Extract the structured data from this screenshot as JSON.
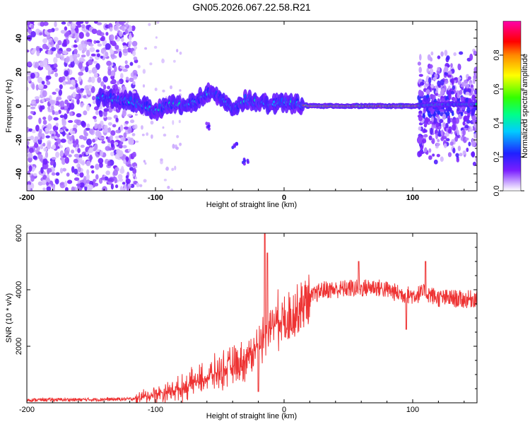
{
  "title": "GN05.2026.067.22.58.R21",
  "chart_data": [
    {
      "type": "heatmap",
      "xlabel": "Height of straight line (km)",
      "ylabel": "Frequency (Hz)",
      "xlim": [
        -200,
        150
      ],
      "ylim": [
        -50,
        50
      ],
      "x_ticks": [
        -200,
        -100,
        0,
        100
      ],
      "y_ticks": [
        -40,
        -20,
        0,
        20,
        40
      ],
      "colorbar": {
        "label": "Normalized spectral amplitude",
        "range": [
          0,
          1
        ],
        "ticks": [
          "0.0",
          "0.2",
          "0.4",
          "0.6",
          "0.8"
        ],
        "colormap": "rainbow (white/lilac to purple, blue, cyan, green, yellow, orange, red, magenta)"
      },
      "features": {
        "noise_regions_km": [
          [
            -200,
            -115
          ],
          [
            105,
            150
          ]
        ],
        "carrier_ridge": [
          {
            "x": -140,
            "y": 5
          },
          {
            "x": -120,
            "y": 3
          },
          {
            "x": -110,
            "y": 1
          },
          {
            "x": -100,
            "y": -3
          },
          {
            "x": -90,
            "y": 1
          },
          {
            "x": -80,
            "y": 0
          },
          {
            "x": -70,
            "y": 2
          },
          {
            "x": -60,
            "y": 8
          },
          {
            "x": -50,
            "y": 6
          },
          {
            "x": -40,
            "y": -2
          },
          {
            "x": -30,
            "y": 4
          },
          {
            "x": -20,
            "y": 2
          },
          {
            "x": -10,
            "y": 1
          },
          {
            "x": 0,
            "y": 2
          },
          {
            "x": 20,
            "y": 0
          },
          {
            "x": 60,
            "y": 0
          },
          {
            "x": 100,
            "y": 0
          },
          {
            "x": 120,
            "y": 1
          },
          {
            "x": 150,
            "y": 1
          }
        ],
        "scattered_branch": [
          {
            "x": -60,
            "y": -12
          },
          {
            "x": -38,
            "y": -24
          },
          {
            "x": -30,
            "y": -33
          }
        ]
      }
    },
    {
      "type": "line",
      "xlabel": "Height of straight line (km)",
      "ylabel": "SNR (10 * v/v)",
      "xlim": [
        -200,
        150
      ],
      "ylim": [
        0,
        6000
      ],
      "x_ticks": [
        -200,
        -100,
        0,
        100
      ],
      "y_ticks": [
        2000,
        4000,
        6000
      ],
      "color": "#ee3333",
      "series": [
        {
          "points": [
            [
              -200,
              100
            ],
            [
              -180,
              110
            ],
            [
              -160,
              110
            ],
            [
              -140,
              120
            ],
            [
              -120,
              130
            ],
            [
              -110,
              200
            ],
            [
              -100,
              300
            ],
            [
              -90,
              400
            ],
            [
              -80,
              500
            ],
            [
              -70,
              700
            ],
            [
              -60,
              900
            ],
            [
              -50,
              1100
            ],
            [
              -40,
              1300
            ],
            [
              -30,
              1500
            ],
            [
              -25,
              1800
            ],
            [
              -20,
              2000
            ],
            [
              -15,
              2400
            ],
            [
              -10,
              2700
            ],
            [
              -5,
              2900
            ],
            [
              0,
              3000
            ],
            [
              5,
              3100
            ],
            [
              10,
              3300
            ],
            [
              20,
              3700
            ],
            [
              30,
              4000
            ],
            [
              40,
              4000
            ],
            [
              50,
              4050
            ],
            [
              60,
              4050
            ],
            [
              70,
              4100
            ],
            [
              80,
              4000
            ],
            [
              90,
              3850
            ],
            [
              100,
              3800
            ],
            [
              110,
              3900
            ],
            [
              120,
              3700
            ],
            [
              130,
              3700
            ],
            [
              140,
              3650
            ],
            [
              150,
              3700
            ]
          ],
          "peaks": [
            [
              -15,
              6000
            ],
            [
              -13,
              5300
            ],
            [
              58,
              5000
            ],
            [
              110,
              5000
            ]
          ],
          "dips": [
            [
              95,
              2600
            ],
            [
              -20,
              400
            ]
          ]
        }
      ]
    }
  ]
}
